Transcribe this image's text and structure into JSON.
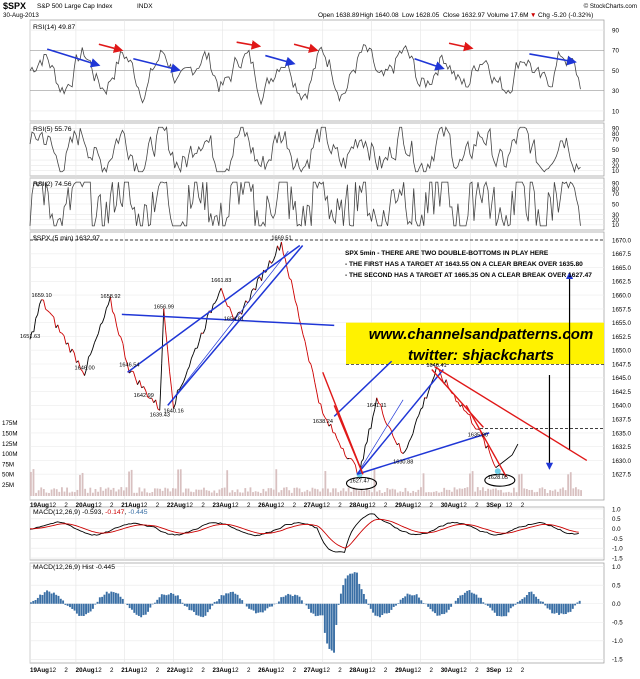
{
  "header": {
    "symbol": "$SPX",
    "name": "S&P 500 Large Cap Index",
    "exchange": "INDX",
    "date": "30-Aug-2013",
    "open": "Open 1638.89",
    "high": "High 1640.08",
    "low": "Low 1628.05",
    "close": "Close 1632.97",
    "volume": "Volume 17.6M",
    "chg": "Chg -5.20 (-0.32%)",
    "chg_marker": "▼",
    "copyright": "© StockCharts.com"
  },
  "chart_data": [
    {
      "type": "line",
      "title": "RSI(14) 49.87",
      "ylim": [
        0,
        100
      ],
      "y_ticks": [
        10,
        30,
        50,
        70,
        90
      ],
      "grid": true,
      "guide_lines": [
        30,
        50,
        70
      ]
    },
    {
      "type": "line",
      "title": "RSI(5) 55.76",
      "ylim": [
        0,
        100
      ],
      "y_ticks": [
        10,
        20,
        30,
        50,
        70,
        80,
        90
      ],
      "grid": true
    },
    {
      "type": "line",
      "title": "RSI(2) 74.56",
      "ylim": [
        0,
        100
      ],
      "y_ticks": [
        10,
        20,
        30,
        50,
        70,
        80,
        90
      ],
      "grid": true
    },
    {
      "type": "line",
      "title": "$SPX (5 min) 1632.97",
      "ylim": [
        1625,
        1670
      ],
      "y_ticks": [
        1627.5,
        1630,
        1632.5,
        1635,
        1637.5,
        1640,
        1642.5,
        1645,
        1647.5,
        1650,
        1652.5,
        1655,
        1657.5,
        1660,
        1662.5,
        1665,
        1667.5,
        1670
      ],
      "volume_ticks": [
        "25M",
        "50M",
        "75M",
        "100M",
        "125M",
        "150M",
        "175M"
      ],
      "yellow_band": [
        1647.5,
        1655
      ],
      "horizontal_levels": [
        1670,
        1647.47,
        1635.8
      ],
      "x_labels": [
        "19Aug",
        "12",
        "2",
        "20Aug",
        "12",
        "2",
        "21Aug",
        "12",
        "2",
        "22Aug",
        "12",
        "2",
        "23Aug",
        "12",
        "2",
        "26Aug",
        "12",
        "2",
        "27Aug",
        "12",
        "2",
        "28Aug",
        "12",
        "2",
        "29Aug",
        "12",
        "2",
        "30Aug",
        "12",
        "2",
        "3Sep",
        "12",
        "2"
      ],
      "price_labels": [
        {
          "label": "1659.10",
          "x": 2,
          "y": 1659.1
        },
        {
          "label": "1651.63",
          "x": 0,
          "y": 1651.63
        },
        {
          "label": "1646.00",
          "x": 9.5,
          "y": 1646.0
        },
        {
          "label": "1658.92",
          "x": 14,
          "y": 1658.92
        },
        {
          "label": "1646.54",
          "x": 17.3,
          "y": 1646.54
        },
        {
          "label": "1642.99",
          "x": 19.8,
          "y": 1642.99
        },
        {
          "label": "1656.99",
          "x": 23.3,
          "y": 1656.99
        },
        {
          "label": "1639.43",
          "x": 22.6,
          "y": 1639.43
        },
        {
          "label": "1640.16",
          "x": 25,
          "y": 1640.16
        },
        {
          "label": "1661.83",
          "x": 33.3,
          "y": 1661.83
        },
        {
          "label": "1654.81",
          "x": 35.5,
          "y": 1654.81
        },
        {
          "label": "1669.51",
          "x": 43.8,
          "y": 1669.51
        },
        {
          "label": "1638.24",
          "x": 51,
          "y": 1638.24
        },
        {
          "label": "1627.47",
          "x": 57.4,
          "y": 1627.47
        },
        {
          "label": "1641.11",
          "x": 60.4,
          "y": 1641.11
        },
        {
          "label": "1630.88",
          "x": 65,
          "y": 1630.88
        },
        {
          "label": "1646.41",
          "x": 70.8,
          "y": 1646.41
        },
        {
          "label": "1635.80",
          "x": 78,
          "y": 1635.8
        },
        {
          "label": "1628.05",
          "x": 81.5,
          "y": 1628.05
        }
      ],
      "annotation": {
        "title": "SPX 5min - THERE ARE TWO DOUBLE-BOTTOMS IN PLAY HERE",
        "line1": "- THE FIRST HAS A TARGET AT 1643.55 ON A CLEAR BREAK OVER 1635.80",
        "line2": "- THE SECOND HAS A TARGET AT 1665.35 ON A CLEAR BREAK OVER 1627.47"
      },
      "watermark": {
        "site": "www.channelsandpatterns.com",
        "twitter": "twitter: shjackcharts"
      }
    },
    {
      "type": "line",
      "title": "MACD(12,26,9) -0.593, -0.147, -0.445",
      "legend": [
        "MACD(12,26,9)",
        "-0.593",
        "-0.147",
        "-0.445"
      ],
      "ylim": [
        -1.6,
        1.1
      ],
      "y_ticks": [
        -1.5,
        -1.0,
        -0.5,
        0.0,
        0.5,
        1.0
      ]
    },
    {
      "type": "bar",
      "title": "MACD(12,26,9) Hist -0.445",
      "ylim": [
        -1.6,
        1.1
      ],
      "y_ticks": [
        -1.5,
        -1.0,
        -0.5,
        0.0,
        0.5,
        1.0
      ],
      "x_labels": [
        "19Aug",
        "12",
        "2",
        "20Aug",
        "12",
        "2",
        "21Aug",
        "12",
        "2",
        "22Aug",
        "12",
        "2",
        "23Aug",
        "12",
        "2",
        "26Aug",
        "12",
        "2",
        "27Aug",
        "12",
        "2",
        "28Aug",
        "12",
        "2",
        "29Aug",
        "12",
        "2",
        "30Aug",
        "12",
        "2",
        "3Sep",
        "12",
        "2"
      ]
    }
  ],
  "colors": {
    "rsi_line": "#444444",
    "rsi_fill_low": "#a05050",
    "price_up": "#000000",
    "price_down": "#cc0000",
    "channel_blue": "#1f36d6",
    "channel_red": "#e01818",
    "highlight": "#fff200",
    "volume": "#d8c0c0",
    "macd_line": "#000000",
    "signal_line": "#cc0000",
    "hist": "#3a6fa5"
  }
}
